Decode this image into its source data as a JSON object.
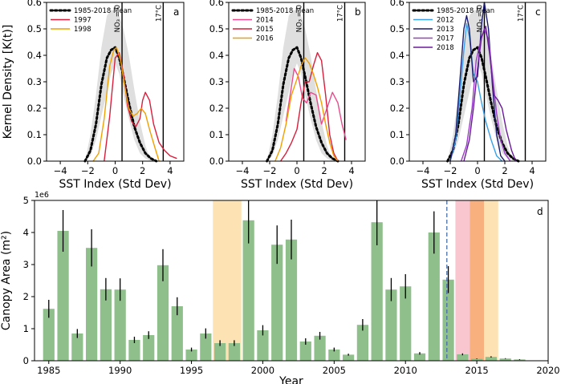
{
  "chart_data": [
    {
      "panel": "a",
      "type": "line",
      "xlabel": "SST Index (Std Dev)",
      "ylabel": "Kernel Density [K(t)]",
      "xlim": [
        -5,
        5
      ],
      "ylim": [
        0,
        0.6
      ],
      "xticks": [
        -4,
        -2,
        0,
        2,
        4
      ],
      "yticks": [
        0.0,
        0.1,
        0.2,
        0.3,
        0.4,
        0.5,
        0.6
      ],
      "legend_position": "top-left",
      "vertical_lines": [
        {
          "x": 0.5,
          "label": "NO₃ = 0"
        },
        {
          "x": 3.5,
          "label": "17°C"
        }
      ],
      "envelope": {
        "x": [
          -2.2,
          -1.8,
          -1.4,
          -1.0,
          -0.6,
          -0.3,
          0.0,
          0.3,
          0.6,
          1.0,
          1.4,
          1.8,
          2.2,
          2.6
        ],
        "lower": [
          0,
          0.02,
          0.08,
          0.17,
          0.26,
          0.33,
          0.37,
          0.33,
          0.25,
          0.16,
          0.08,
          0.03,
          0.01,
          0
        ],
        "upper": [
          0,
          0.1,
          0.25,
          0.43,
          0.55,
          0.57,
          0.57,
          0.55,
          0.5,
          0.4,
          0.27,
          0.15,
          0.06,
          0
        ]
      },
      "series": [
        {
          "name": "1985-2018 Mean",
          "color": "#000000",
          "style": "dotted",
          "x": [
            -2.2,
            -1.8,
            -1.4,
            -1.0,
            -0.6,
            -0.3,
            0.0,
            0.3,
            0.6,
            1.0,
            1.4,
            1.8,
            2.2,
            2.6,
            3.0
          ],
          "y": [
            0.0,
            0.04,
            0.14,
            0.29,
            0.39,
            0.42,
            0.43,
            0.39,
            0.32,
            0.22,
            0.13,
            0.07,
            0.03,
            0.01,
            0.0
          ]
        },
        {
          "name": "1997",
          "color": "#d81f3c",
          "style": "solid",
          "x": [
            -0.8,
            -0.4,
            0.0,
            0.3,
            0.6,
            0.9,
            1.2,
            1.5,
            1.8,
            2.0,
            2.2,
            2.5,
            2.8,
            3.2,
            3.6,
            4.0,
            4.5
          ],
          "y": [
            0.0,
            0.17,
            0.39,
            0.41,
            0.33,
            0.21,
            0.15,
            0.13,
            0.16,
            0.23,
            0.26,
            0.23,
            0.14,
            0.07,
            0.04,
            0.02,
            0.01
          ]
        },
        {
          "name": "1998",
          "color": "#f0a000",
          "style": "solid",
          "x": [
            -1.6,
            -1.2,
            -0.8,
            -0.4,
            -0.1,
            0.1,
            0.4,
            0.7,
            1.0,
            1.3,
            1.6,
            1.9,
            2.2,
            2.5,
            2.9,
            3.2
          ],
          "y": [
            0.0,
            0.03,
            0.16,
            0.36,
            0.42,
            0.43,
            0.38,
            0.28,
            0.2,
            0.17,
            0.18,
            0.2,
            0.18,
            0.12,
            0.05,
            0.0
          ]
        }
      ]
    },
    {
      "panel": "b",
      "type": "line",
      "xlabel": "SST Index (Std Dev)",
      "xlim": [
        -5,
        5
      ],
      "ylim": [
        0,
        0.6
      ],
      "xticks": [
        -4,
        -2,
        0,
        2,
        4
      ],
      "legend_position": "top-left",
      "vertical_lines": [
        {
          "x": 0.5,
          "label": "NO₃ = 0"
        },
        {
          "x": 3.5,
          "label": "17°C"
        }
      ],
      "series": [
        {
          "name": "1985-2018 Mean",
          "color": "#000000",
          "style": "dotted",
          "x": [
            -2.2,
            -1.8,
            -1.4,
            -1.0,
            -0.6,
            -0.3,
            0.0,
            0.3,
            0.6,
            1.0,
            1.4,
            1.8,
            2.2,
            2.6,
            3.0
          ],
          "y": [
            0.0,
            0.04,
            0.14,
            0.29,
            0.39,
            0.42,
            0.43,
            0.39,
            0.32,
            0.22,
            0.13,
            0.07,
            0.03,
            0.01,
            0.0
          ]
        },
        {
          "name": "2014",
          "color": "#ea4a8c",
          "style": "solid",
          "x": [
            -0.8,
            -0.5,
            -0.2,
            0.1,
            0.4,
            0.7,
            1.0,
            1.4,
            1.8,
            2.2,
            2.6,
            3.0,
            3.3,
            3.6
          ],
          "y": [
            0.15,
            0.25,
            0.35,
            0.32,
            0.24,
            0.22,
            0.26,
            0.25,
            0.14,
            0.2,
            0.26,
            0.22,
            0.14,
            0.08
          ]
        },
        {
          "name": "2015",
          "color": "#d81f3c",
          "style": "solid",
          "x": [
            -1.2,
            -0.8,
            -0.4,
            0.0,
            0.3,
            0.6,
            0.9,
            1.2,
            1.5,
            1.8,
            2.1,
            2.4,
            2.7,
            3.0
          ],
          "y": [
            0.0,
            0.03,
            0.07,
            0.12,
            0.22,
            0.3,
            0.3,
            0.36,
            0.41,
            0.38,
            0.25,
            0.1,
            0.03,
            0.0
          ]
        },
        {
          "name": "2016",
          "color": "#f0a000",
          "style": "solid",
          "x": [
            -1.6,
            -1.2,
            -0.8,
            -0.4,
            0.0,
            0.3,
            0.6,
            0.9,
            1.2,
            1.5,
            1.8,
            2.1,
            2.4,
            2.7,
            3.0
          ],
          "y": [
            0.0,
            0.05,
            0.14,
            0.25,
            0.31,
            0.36,
            0.39,
            0.37,
            0.33,
            0.28,
            0.22,
            0.14,
            0.07,
            0.02,
            0.0
          ]
        }
      ]
    },
    {
      "panel": "c",
      "type": "line",
      "xlabel": "SST Index (Std Dev)",
      "xlim": [
        -5,
        5
      ],
      "ylim": [
        0,
        0.6
      ],
      "xticks": [
        -4,
        -2,
        0,
        2,
        4
      ],
      "legend_position": "top-left",
      "vertical_lines": [
        {
          "x": 0.5,
          "label": "NO₃ = 0"
        },
        {
          "x": 3.5,
          "label": "17°C"
        }
      ],
      "series": [
        {
          "name": "1985-2018 Mean",
          "color": "#000000",
          "style": "dotted",
          "x": [
            -2.2,
            -1.8,
            -1.4,
            -1.0,
            -0.6,
            -0.3,
            0.0,
            0.3,
            0.6,
            1.0,
            1.4,
            1.8,
            2.2,
            2.6,
            3.0
          ],
          "y": [
            0.0,
            0.04,
            0.14,
            0.29,
            0.39,
            0.42,
            0.43,
            0.39,
            0.32,
            0.22,
            0.13,
            0.07,
            0.03,
            0.01,
            0.0
          ]
        },
        {
          "name": "2012",
          "color": "#3aa0e8",
          "style": "solid",
          "x": [
            -2.0,
            -1.6,
            -1.3,
            -1.0,
            -0.8,
            -0.6,
            -0.3,
            0.0,
            0.3,
            0.6,
            1.0,
            1.4,
            1.8
          ],
          "y": [
            0.0,
            0.08,
            0.24,
            0.42,
            0.52,
            0.47,
            0.33,
            0.3,
            0.22,
            0.15,
            0.08,
            0.02,
            0.0
          ]
        },
        {
          "name": "2013",
          "color": "#1a1a6e",
          "style": "solid",
          "x": [
            -2.0,
            -1.6,
            -1.3,
            -1.0,
            -0.8,
            -0.6,
            -0.3,
            0.0,
            0.3,
            0.5,
            0.8,
            1.1,
            1.4,
            1.7,
            2.0
          ],
          "y": [
            0.0,
            0.1,
            0.3,
            0.5,
            0.55,
            0.5,
            0.3,
            0.32,
            0.52,
            0.6,
            0.5,
            0.28,
            0.1,
            0.02,
            0.0
          ]
        },
        {
          "name": "2017",
          "color": "#9a3ec8",
          "style": "solid",
          "x": [
            -1.2,
            -0.8,
            -0.4,
            -0.1,
            0.2,
            0.5,
            0.8,
            1.1,
            1.4,
            1.7,
            2.0,
            2.4
          ],
          "y": [
            0.0,
            0.06,
            0.2,
            0.38,
            0.45,
            0.5,
            0.46,
            0.32,
            0.18,
            0.08,
            0.03,
            0.0
          ]
        },
        {
          "name": "2018",
          "color": "#6a1b9a",
          "style": "solid",
          "x": [
            -1.0,
            -0.6,
            -0.3,
            0.0,
            0.3,
            0.6,
            0.9,
            1.2,
            1.5,
            1.8,
            2.1,
            2.5,
            2.8
          ],
          "y": [
            0.0,
            0.08,
            0.2,
            0.35,
            0.47,
            0.51,
            0.4,
            0.25,
            0.23,
            0.2,
            0.12,
            0.04,
            0.0
          ]
        }
      ]
    },
    {
      "panel": "d",
      "type": "bar",
      "xlabel": "Year",
      "ylabel": "Canopy Area (m²)",
      "scale_label": "1e6",
      "xlim": [
        1984,
        2020
      ],
      "ylim": [
        0,
        5
      ],
      "xticks": [
        1985,
        1990,
        1995,
        2000,
        2005,
        2010,
        2015,
        2020
      ],
      "yticks": [
        0,
        1,
        2,
        3,
        4,
        5
      ],
      "bar_color": "#8fbf8a",
      "dashed_line_year": 2012.9,
      "shaded_spans": [
        {
          "from": 1996.5,
          "to": 1998.5,
          "color": "#fde3b3"
        },
        {
          "from": 2013.5,
          "to": 2014.5,
          "color": "#f9c5cf"
        },
        {
          "from": 2014.5,
          "to": 2015.5,
          "color": "#f8b07f"
        },
        {
          "from": 2015.5,
          "to": 2016.5,
          "color": "#fde3b3"
        }
      ],
      "years": [
        1985,
        1986,
        1987,
        1988,
        1989,
        1990,
        1991,
        1992,
        1993,
        1994,
        1995,
        1996,
        1997,
        1998,
        1999,
        2000,
        2001,
        2002,
        2003,
        2004,
        2005,
        2006,
        2007,
        2008,
        2009,
        2010,
        2011,
        2012,
        2013,
        2014,
        2015,
        2016,
        2017,
        2018
      ],
      "values": [
        1.62,
        4.05,
        0.85,
        3.52,
        2.23,
        2.22,
        0.65,
        0.8,
        2.98,
        1.7,
        0.35,
        0.85,
        0.55,
        0.55,
        4.38,
        0.95,
        3.62,
        3.78,
        0.6,
        0.78,
        0.35,
        0.19,
        1.12,
        4.32,
        2.22,
        2.32,
        0.23,
        4.0,
        2.53,
        0.2,
        0.06,
        0.12,
        0.07,
        0.04
      ],
      "errors": [
        0.28,
        0.65,
        0.14,
        0.58,
        0.35,
        0.35,
        0.1,
        0.12,
        0.5,
        0.28,
        0.06,
        0.16,
        0.09,
        0.09,
        0.72,
        0.16,
        0.6,
        0.62,
        0.1,
        0.12,
        0.06,
        0.03,
        0.18,
        0.72,
        0.36,
        0.38,
        0.04,
        0.66,
        0.42,
        0.03,
        0.01,
        0.02,
        0.01,
        0.01
      ]
    }
  ]
}
